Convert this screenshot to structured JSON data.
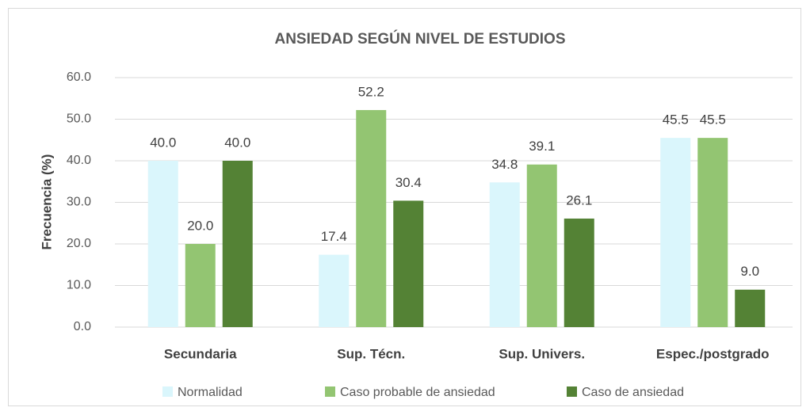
{
  "chart_data": {
    "type": "bar",
    "title": "ANSIEDAD SEGÚN NIVEL DE ESTUDIOS",
    "y_label": "Frecuencia (%)",
    "categories": [
      "Secundaria",
      "Sup. Técn.",
      "Sup. Univers.",
      "Espec./postgrado"
    ],
    "series": [
      {
        "name": "Normalidad",
        "color": "#daf6fc",
        "values": [
          40.0,
          17.4,
          34.8,
          45.5
        ],
        "value_labels": [
          "40.0",
          "17.4",
          "34.8",
          "45.5"
        ]
      },
      {
        "name": "Caso probable de ansiedad",
        "color": "#93c572",
        "values": [
          20.0,
          52.2,
          39.1,
          45.5
        ],
        "value_labels": [
          "20.0",
          "52.2",
          "39.1",
          "45.5"
        ]
      },
      {
        "name": "Caso de ansiedad",
        "color": "#548235",
        "values": [
          40.0,
          30.4,
          26.1,
          9.0
        ],
        "value_labels": [
          "40.0",
          "30.4",
          "26.1",
          "9.0"
        ]
      }
    ],
    "ylim": [
      0,
      60
    ],
    "yticks": [
      {
        "value": 0,
        "label": "0.0"
      },
      {
        "value": 10,
        "label": "10.0"
      },
      {
        "value": 20,
        "label": "20.0"
      },
      {
        "value": 30,
        "label": "30.0"
      },
      {
        "value": 40,
        "label": "40.0"
      },
      {
        "value": 50,
        "label": "50.0"
      },
      {
        "value": 60,
        "label": "60.0"
      }
    ],
    "grid": true,
    "legend": "bottom"
  }
}
